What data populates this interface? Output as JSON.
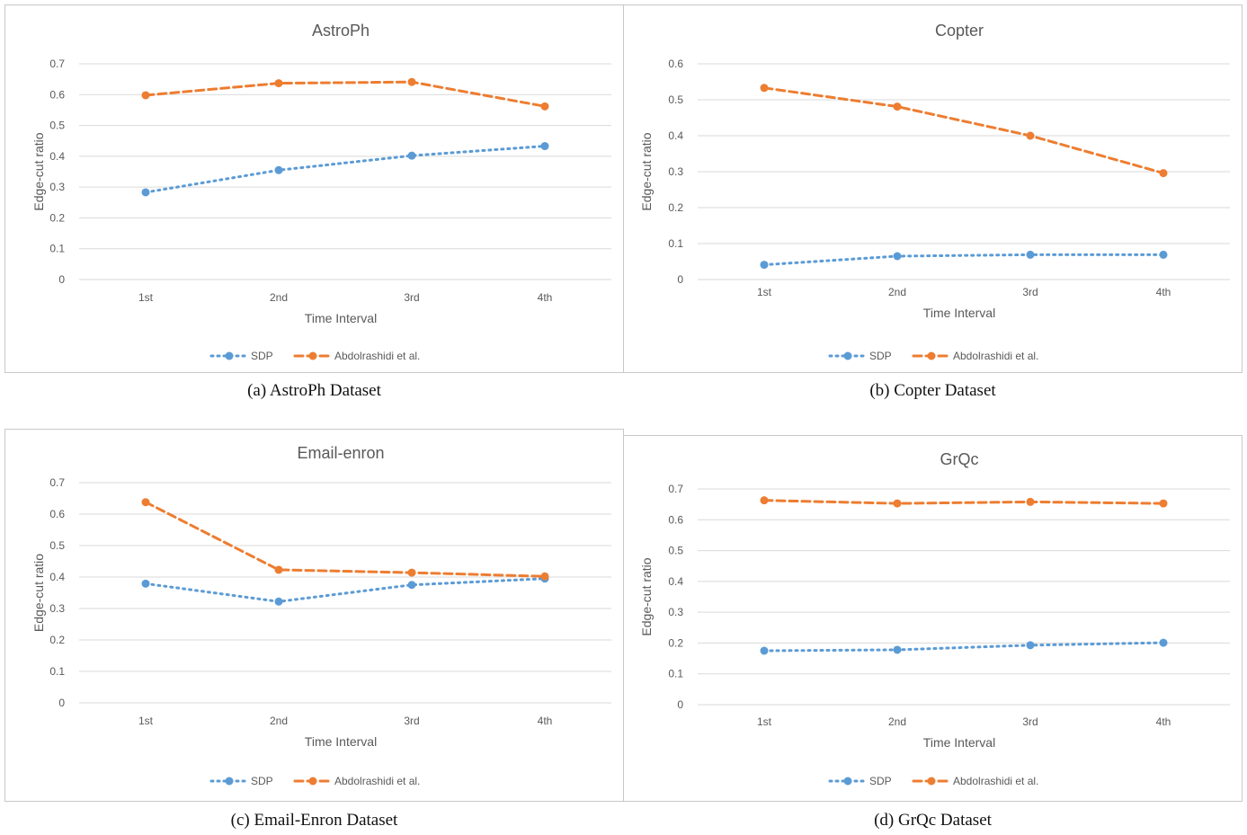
{
  "figures": [
    {
      "caption": "(a) AstroPh Dataset"
    },
    {
      "caption": "(b) Copter Dataset"
    },
    {
      "caption": "(c) Email-Enron Dataset"
    },
    {
      "caption": "(d) GrQc Dataset"
    }
  ],
  "colors": {
    "sdp": "#5B9BD5",
    "abdol": "#ED7D31",
    "grid": "#d9d9d9",
    "text": "#595959"
  },
  "chart_data": [
    {
      "type": "line",
      "title": "AstroPh",
      "xlabel": "Time Interval",
      "ylabel": "Edge-cut ratio",
      "categories": [
        "1st",
        "2nd",
        "3rd",
        "4th"
      ],
      "yticks": [
        "0",
        "0.1",
        "0.2",
        "0.3",
        "0.4",
        "0.5",
        "0.6",
        "0.7"
      ],
      "ylim": [
        0,
        0.7
      ],
      "grid": true,
      "legend_position": "bottom",
      "series": [
        {
          "name": "SDP",
          "style": "dotted",
          "values": [
            0.283,
            0.355,
            0.402,
            0.433
          ]
        },
        {
          "name": "Abdolrashidi et al.",
          "style": "dashed",
          "values": [
            0.598,
            0.637,
            0.641,
            0.562
          ]
        }
      ]
    },
    {
      "type": "line",
      "title": "Copter",
      "xlabel": "Time Interval",
      "ylabel": "Edge-cut ratio",
      "categories": [
        "1st",
        "2nd",
        "3rd",
        "4th"
      ],
      "yticks": [
        "0",
        "0.1",
        "0.2",
        "0.3",
        "0.4",
        "0.5",
        "0.6"
      ],
      "ylim": [
        0,
        0.6
      ],
      "grid": true,
      "legend_position": "bottom",
      "series": [
        {
          "name": "SDP",
          "style": "dotted",
          "values": [
            0.041,
            0.065,
            0.069,
            0.069
          ]
        },
        {
          "name": "Abdolrashidi et al.",
          "style": "dashed",
          "values": [
            0.533,
            0.481,
            0.4,
            0.296
          ]
        }
      ]
    },
    {
      "type": "line",
      "title": "Email-enron",
      "xlabel": "Time Interval",
      "ylabel": "Edge-cut ratio",
      "categories": [
        "1st",
        "2nd",
        "3rd",
        "4th"
      ],
      "yticks": [
        "0",
        "0.1",
        "0.2",
        "0.3",
        "0.4",
        "0.5",
        "0.6",
        "0.7"
      ],
      "ylim": [
        0,
        0.7
      ],
      "grid": true,
      "legend_position": "bottom",
      "series": [
        {
          "name": "SDP",
          "style": "dotted",
          "values": [
            0.379,
            0.322,
            0.375,
            0.395
          ]
        },
        {
          "name": "Abdolrashidi et al.",
          "style": "dashed",
          "values": [
            0.638,
            0.423,
            0.414,
            0.402
          ]
        }
      ]
    },
    {
      "type": "line",
      "title": "GrQc",
      "xlabel": "Time Interval",
      "ylabel": "Edge-cut ratio",
      "categories": [
        "1st",
        "2nd",
        "3rd",
        "4th"
      ],
      "yticks": [
        "0",
        "0.1",
        "0.2",
        "0.3",
        "0.4",
        "0.5",
        "0.6",
        "0.7"
      ],
      "ylim": [
        0,
        0.7
      ],
      "grid": true,
      "legend_position": "bottom",
      "series": [
        {
          "name": "SDP",
          "style": "dotted",
          "values": [
            0.175,
            0.178,
            0.193,
            0.201
          ]
        },
        {
          "name": "Abdolrashidi et al.",
          "style": "dashed",
          "values": [
            0.663,
            0.653,
            0.658,
            0.653
          ]
        }
      ]
    }
  ]
}
